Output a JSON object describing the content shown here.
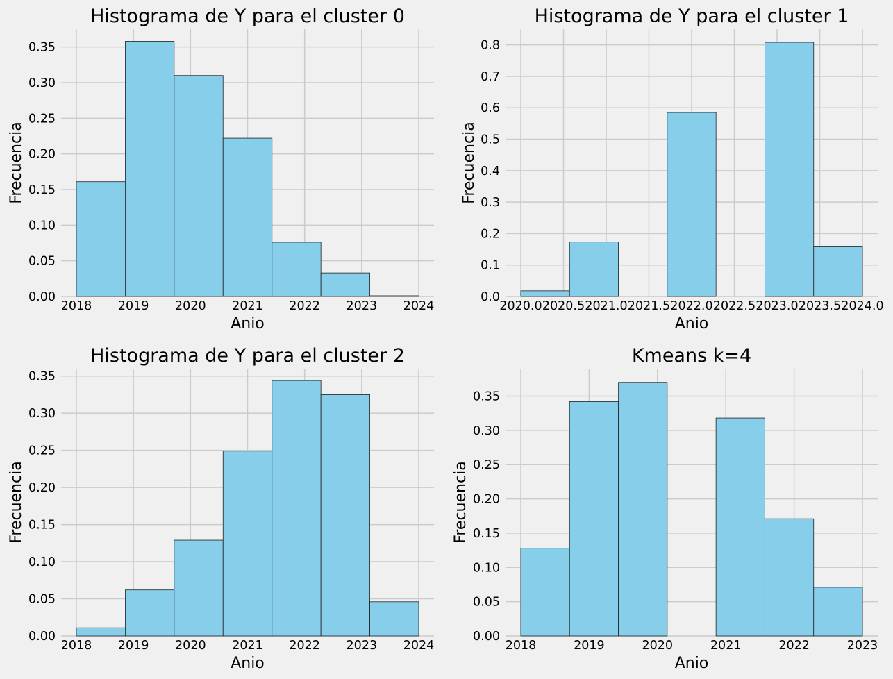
{
  "figure": {
    "background": "#f0f0f0",
    "bar_color": "#87ceeb",
    "edge_color": "#222222",
    "grid_color": "#cbcbcb"
  },
  "chart_data": [
    {
      "type": "bar",
      "title": "Histograma de Y para el cluster 0",
      "xlabel": "Anio",
      "ylabel": "Frecuencia",
      "xlim": [
        2018,
        2024
      ],
      "ylim": [
        0,
        0.375
      ],
      "xticks": [
        2018,
        2019,
        2020,
        2021,
        2022,
        2023,
        2024
      ],
      "xtick_labels": [
        "2018",
        "2019",
        "2020",
        "2021",
        "2022",
        "2023",
        "2024"
      ],
      "yticks": [
        0,
        0.05,
        0.1,
        0.15,
        0.2,
        0.25,
        0.3,
        0.35
      ],
      "ytick_labels": [
        "0.00",
        "0.05",
        "0.10",
        "0.15",
        "0.20",
        "0.25",
        "0.30",
        "0.35"
      ],
      "bin_edges": [
        2018,
        2018.857,
        2019.714,
        2020.571,
        2021.429,
        2022.286,
        2023.143,
        2024
      ],
      "values": [
        0.161,
        0.358,
        0.31,
        0.222,
        0.076,
        0.033,
        0.001
      ],
      "grid": true
    },
    {
      "type": "bar",
      "title": "Histograma de Y para el cluster 1",
      "xlabel": "Anio",
      "ylabel": "Frecuencia",
      "xlim": [
        2020,
        2024
      ],
      "ylim": [
        0,
        0.85
      ],
      "xticks": [
        2020,
        2020.5,
        2021,
        2021.5,
        2022,
        2022.5,
        2023,
        2023.5,
        2024
      ],
      "xtick_labels": [
        "2020.0",
        "2020.5",
        "2021.0",
        "2021.5",
        "2022.0",
        "2022.5",
        "2023.0",
        "2023.5",
        "2024.0"
      ],
      "yticks": [
        0,
        0.1,
        0.2,
        0.3,
        0.4,
        0.5,
        0.6,
        0.7,
        0.8
      ],
      "ytick_labels": [
        "0.0",
        "0.1",
        "0.2",
        "0.3",
        "0.4",
        "0.5",
        "0.6",
        "0.7",
        "0.8"
      ],
      "bin_edges": [
        2020,
        2020.571,
        2021.143,
        2021.714,
        2022.286,
        2022.857,
        2023.429,
        2024
      ],
      "values": [
        0.018,
        0.173,
        0,
        0.585,
        0,
        0.808,
        0.158
      ],
      "grid": true
    },
    {
      "type": "bar",
      "title": "Histograma de Y para el cluster 2",
      "xlabel": "Anio",
      "ylabel": "Frecuencia",
      "xlim": [
        2018,
        2024
      ],
      "ylim": [
        0,
        0.36
      ],
      "xticks": [
        2018,
        2019,
        2020,
        2021,
        2022,
        2023,
        2024
      ],
      "xtick_labels": [
        "2018",
        "2019",
        "2020",
        "2021",
        "2022",
        "2023",
        "2024"
      ],
      "yticks": [
        0,
        0.05,
        0.1,
        0.15,
        0.2,
        0.25,
        0.3,
        0.35
      ],
      "ytick_labels": [
        "0.00",
        "0.05",
        "0.10",
        "0.15",
        "0.20",
        "0.25",
        "0.30",
        "0.35"
      ],
      "bin_edges": [
        2018,
        2018.857,
        2019.714,
        2020.571,
        2021.429,
        2022.286,
        2023.143,
        2024
      ],
      "values": [
        0.011,
        0.062,
        0.129,
        0.249,
        0.344,
        0.325,
        0.046
      ],
      "grid": true
    },
    {
      "type": "bar",
      "title": "Kmeans k=4",
      "xlabel": "Anio",
      "ylabel": "Frecuencia",
      "xlim": [
        2018,
        2023
      ],
      "ylim": [
        0,
        0.39
      ],
      "xticks": [
        2018,
        2019,
        2020,
        2021,
        2022,
        2023
      ],
      "xtick_labels": [
        "2018",
        "2019",
        "2020",
        "2021",
        "2022",
        "2023"
      ],
      "yticks": [
        0,
        0.05,
        0.1,
        0.15,
        0.2,
        0.25,
        0.3,
        0.35
      ],
      "ytick_labels": [
        "0.00",
        "0.05",
        "0.10",
        "0.15",
        "0.20",
        "0.25",
        "0.30",
        "0.35"
      ],
      "bin_edges": [
        2018,
        2018.714,
        2019.429,
        2020.143,
        2020.857,
        2021.571,
        2022.286,
        2023
      ],
      "values": [
        0.128,
        0.342,
        0.37,
        0,
        0.318,
        0.171,
        0.071
      ],
      "grid": true
    }
  ]
}
